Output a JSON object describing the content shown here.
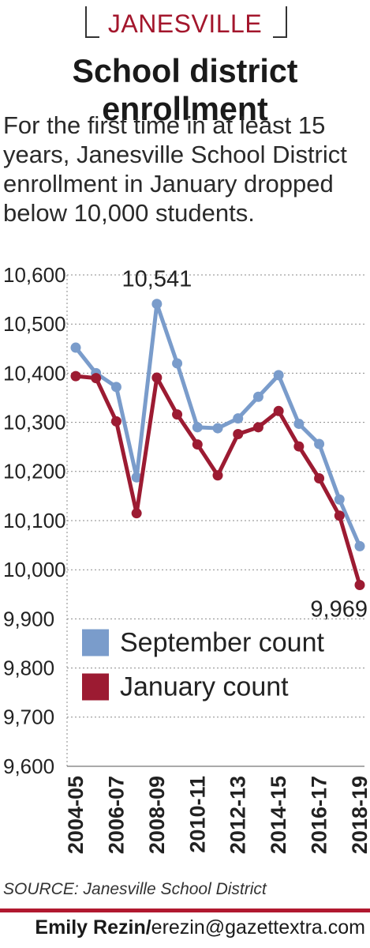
{
  "header": {
    "kicker": "JANESVILLE",
    "headline": "School district enrollment",
    "intro": "For the first time in at least 15 years, Janesville School District enrollment in January dropped below 10,000 students."
  },
  "chart_data": {
    "type": "line",
    "title": "School district enrollment",
    "x": [
      "2004-05",
      "2005-06",
      "2006-07",
      "2007-08",
      "2008-09",
      "2009-10",
      "2010-11",
      "2011-12",
      "2012-13",
      "2013-14",
      "2014-15",
      "2015-16",
      "2016-17",
      "2017-18",
      "2018-19"
    ],
    "x_tick_labels": [
      "2004-05",
      "2006-07",
      "2008-09",
      "2010-11",
      "2012-13",
      "2014-15",
      "2016-17",
      "2018-19"
    ],
    "y_ticks": [
      9600,
      9700,
      9800,
      9900,
      10000,
      10100,
      10200,
      10300,
      10400,
      10500,
      10600
    ],
    "y_tick_labels": [
      "9,600",
      "9,700",
      "9,800",
      "9,900",
      "10,000",
      "10,100",
      "10,200",
      "10,300",
      "10,400",
      "10,500",
      "10,600"
    ],
    "ylim": [
      9600,
      10600
    ],
    "grid": "horizontal dashed",
    "legend_position": "lower-left",
    "series": [
      {
        "name": "September count",
        "color": "#7a9ccb",
        "values": [
          10452,
          10400,
          10372,
          10188,
          10541,
          10420,
          10290,
          10288,
          10308,
          10352,
          10396,
          10297,
          10256,
          10143,
          10048
        ]
      },
      {
        "name": "January count",
        "color": "#9c1b32",
        "values": [
          10394,
          10390,
          10302,
          10115,
          10391,
          10316,
          10255,
          10192,
          10276,
          10290,
          10323,
          10251,
          10186,
          10110,
          9969
        ]
      }
    ],
    "annotations": [
      {
        "text": "10,541",
        "series": 0,
        "index": 4
      },
      {
        "text": "9,969",
        "series": 1,
        "index": 14
      }
    ]
  },
  "footer": {
    "source": "SOURCE: Janesville School District",
    "byline_name": "Emily Rezin",
    "byline_sep": "/",
    "byline_email": "erezin@gazettextra.com"
  }
}
